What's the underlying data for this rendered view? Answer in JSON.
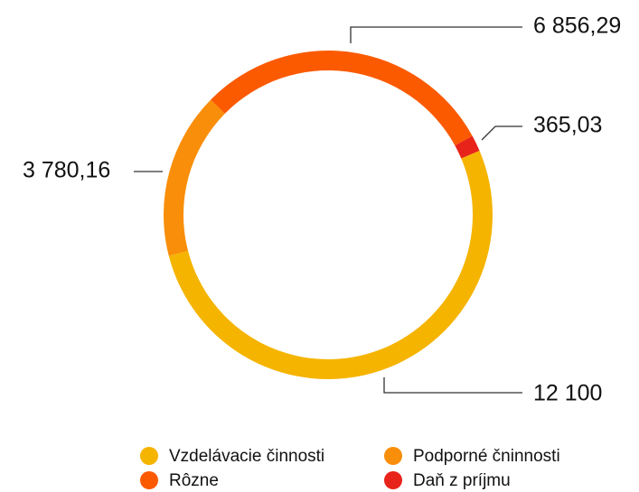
{
  "chart_data": {
    "type": "donut",
    "categories": [
      "Vzdelávacie činnosti",
      "Podporné čninnosti",
      "Rôzne",
      "Daň z príjmu"
    ],
    "values": [
      12100,
      3780.16,
      6856.29,
      365.03
    ],
    "value_labels": [
      "12 100",
      "3 780,16",
      "6 856,29",
      "365,03"
    ],
    "colors": [
      "#f5b400",
      "#f98e0a",
      "#fb5a00",
      "#e8231a"
    ],
    "legend": "bottom"
  }
}
